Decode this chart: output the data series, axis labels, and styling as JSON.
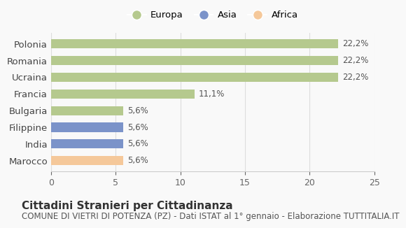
{
  "categories": [
    "Marocco",
    "India",
    "Filippine",
    "Bulgaria",
    "Francia",
    "Ucraina",
    "Romania",
    "Polonia"
  ],
  "values": [
    5.6,
    5.6,
    5.6,
    5.6,
    11.1,
    22.2,
    22.2,
    22.2
  ],
  "colors": [
    "#f5c89a",
    "#7b93c9",
    "#7b93c9",
    "#b5c98e",
    "#b5c98e",
    "#b5c98e",
    "#b5c98e",
    "#b5c98e"
  ],
  "labels": [
    "5,6%",
    "5,6%",
    "5,6%",
    "5,6%",
    "11,1%",
    "22,2%",
    "22,2%",
    "22,2%"
  ],
  "legend_labels": [
    "Europa",
    "Asia",
    "Africa"
  ],
  "legend_colors": [
    "#b5c98e",
    "#7b93c9",
    "#f5c89a"
  ],
  "xlim": [
    0,
    25
  ],
  "xticks": [
    0,
    5,
    10,
    15,
    20,
    25
  ],
  "title": "Cittadini Stranieri per Cittadinanza",
  "subtitle": "COMUNE DI VIETRI DI POTENZA (PZ) - Dati ISTAT al 1° gennaio - Elaborazione TUTTITALIA.IT",
  "background_color": "#f9f9f9",
  "bar_height": 0.55,
  "label_fontsize": 8.5,
  "title_fontsize": 11,
  "subtitle_fontsize": 8.5
}
